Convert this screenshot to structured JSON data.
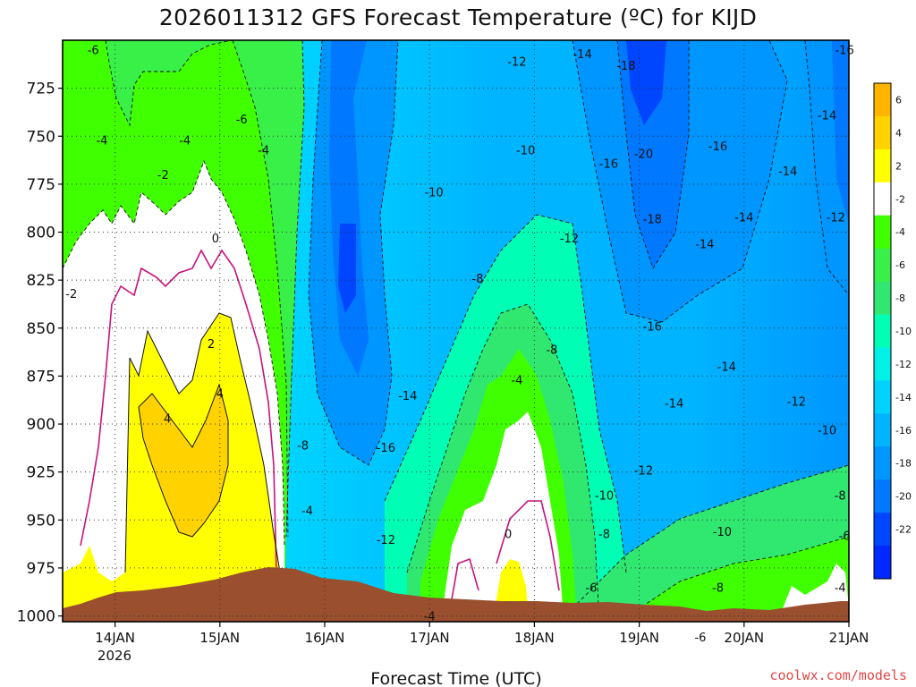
{
  "chart_data": {
    "type": "heatmap",
    "title": "2026011312 GFS Forecast Temperature (ºC) for KIJD",
    "xlabel": "Forecast Time (UTC)",
    "ylabel": "",
    "credit": "coolwx.com/models",
    "x_ticks": [
      "14JAN",
      "15JAN",
      "16JAN",
      "17JAN",
      "18JAN",
      "19JAN",
      "20JAN",
      "21JAN"
    ],
    "x_year_label": "2026",
    "x_range": [
      "2026-01-13T12:00Z",
      "2026-01-21T00:00Z"
    ],
    "y_ticks": [
      "725",
      "750",
      "775",
      "800",
      "825",
      "850",
      "875",
      "900",
      "925",
      "950",
      "975",
      "1000"
    ],
    "y_range_hpa": [
      1003,
      700
    ],
    "y_reversed": true,
    "grid": true,
    "colorbar": {
      "labels": [
        "6",
        "4",
        "2",
        "-2",
        "-4",
        "-6",
        "-8",
        "-10",
        "-12",
        "-14",
        "-16",
        "-18",
        "-20",
        "-22"
      ],
      "colors": [
        "#ffb400",
        "#ffd200",
        "#ffff00",
        "#ffffff",
        "#40ff00",
        "#38f048",
        "#30e870",
        "#00ffb4",
        "#00f0e6",
        "#00d2ff",
        "#00b4ff",
        "#0096ff",
        "#0078ff",
        "#0046ff",
        "#0028ff"
      ]
    },
    "contour_labels": [
      {
        "text": "-6",
        "t": "2026-01-13T19:00Z",
        "p": 705
      },
      {
        "text": "-4",
        "t": "2026-01-13T21:00Z",
        "p": 752
      },
      {
        "text": "-4",
        "t": "2026-01-14T16:00Z",
        "p": 752
      },
      {
        "text": "-6",
        "t": "2026-01-15T05:00Z",
        "p": 741
      },
      {
        "text": "-4",
        "t": "2026-01-15T10:00Z",
        "p": 757
      },
      {
        "text": "-2",
        "t": "2026-01-14T11:00Z",
        "p": 770
      },
      {
        "text": "-2",
        "t": "2026-01-13T14:00Z",
        "p": 832
      },
      {
        "text": "0",
        "t": "2026-01-14T23:00Z",
        "p": 803
      },
      {
        "text": "2",
        "t": "2026-01-14T22:00Z",
        "p": 858
      },
      {
        "text": "4",
        "t": "2026-01-15T00:00Z",
        "p": 884
      },
      {
        "text": "4",
        "t": "2026-01-14T12:00Z",
        "p": 897
      },
      {
        "text": "-8",
        "t": "2026-01-15T19:00Z",
        "p": 911
      },
      {
        "text": "-4",
        "t": "2026-01-15T20:00Z",
        "p": 945
      },
      {
        "text": "-12",
        "t": "2026-01-17T20:00Z",
        "p": 711
      },
      {
        "text": "-14",
        "t": "2026-01-18T11:00Z",
        "p": 707
      },
      {
        "text": "-18",
        "t": "2026-01-18T21:00Z",
        "p": 713
      },
      {
        "text": "-16",
        "t": "2026-01-20T23:00Z",
        "p": 705
      },
      {
        "text": "-14",
        "t": "2026-01-20T19:00Z",
        "p": 739
      },
      {
        "text": "-10",
        "t": "2026-01-17T22:00Z",
        "p": 757
      },
      {
        "text": "-20",
        "t": "2026-01-19T01:00Z",
        "p": 759
      },
      {
        "text": "-16",
        "t": "2026-01-19T18:00Z",
        "p": 755
      },
      {
        "text": "-16",
        "t": "2026-01-18T17:00Z",
        "p": 764
      },
      {
        "text": "-14",
        "t": "2026-01-20T10:00Z",
        "p": 768
      },
      {
        "text": "-10",
        "t": "2026-01-17T01:00Z",
        "p": 779
      },
      {
        "text": "-18",
        "t": "2026-01-19T03:00Z",
        "p": 793
      },
      {
        "text": "-14",
        "t": "2026-01-20T00:00Z",
        "p": 792
      },
      {
        "text": "-12",
        "t": "2026-01-20T21:00Z",
        "p": 792
      },
      {
        "text": "-14",
        "t": "2026-01-19T15:00Z",
        "p": 806
      },
      {
        "text": "-12",
        "t": "2026-01-18T08:00Z",
        "p": 803
      },
      {
        "text": "-8",
        "t": "2026-01-17T11:00Z",
        "p": 824
      },
      {
        "text": "-16",
        "t": "2026-01-19T03:00Z",
        "p": 849
      },
      {
        "text": "-8",
        "t": "2026-01-18T04:00Z",
        "p": 861
      },
      {
        "text": "-14",
        "t": "2026-01-19T20:00Z",
        "p": 870
      },
      {
        "text": "-4",
        "t": "2026-01-17T20:00Z",
        "p": 877
      },
      {
        "text": "-14",
        "t": "2026-01-16T19:00Z",
        "p": 885
      },
      {
        "text": "-14",
        "t": "2026-01-19T08:00Z",
        "p": 889
      },
      {
        "text": "-12",
        "t": "2026-01-20T12:00Z",
        "p": 888
      },
      {
        "text": "-10",
        "t": "2026-01-20T19:00Z",
        "p": 903
      },
      {
        "text": "-16",
        "t": "2026-01-16T14:00Z",
        "p": 912
      },
      {
        "text": "-12",
        "t": "2026-01-19T01:00Z",
        "p": 924
      },
      {
        "text": "-10",
        "t": "2026-01-18T16:00Z",
        "p": 937
      },
      {
        "text": "-8",
        "t": "2026-01-20T22:00Z",
        "p": 937
      },
      {
        "text": "-8",
        "t": "2026-01-18T16:00Z",
        "p": 957
      },
      {
        "text": "-10",
        "t": "2026-01-19T19:00Z",
        "p": 956
      },
      {
        "text": "-6",
        "t": "2026-01-20T23:00Z",
        "p": 958
      },
      {
        "text": "-12",
        "t": "2026-01-16T14:00Z",
        "p": 960
      },
      {
        "text": "0",
        "t": "2026-01-17T18:00Z",
        "p": 957
      },
      {
        "text": "-6",
        "t": "2026-01-18T13:00Z",
        "p": 985
      },
      {
        "text": "-8",
        "t": "2026-01-19T18:00Z",
        "p": 985
      },
      {
        "text": "-4",
        "t": "2026-01-20T22:00Z",
        "p": 985
      },
      {
        "text": "-4",
        "t": "2026-01-17T00:00Z",
        "p": 1000
      },
      {
        "text": "-6",
        "t": "2026-01-19T14:00Z",
        "p": 1011
      }
    ]
  }
}
